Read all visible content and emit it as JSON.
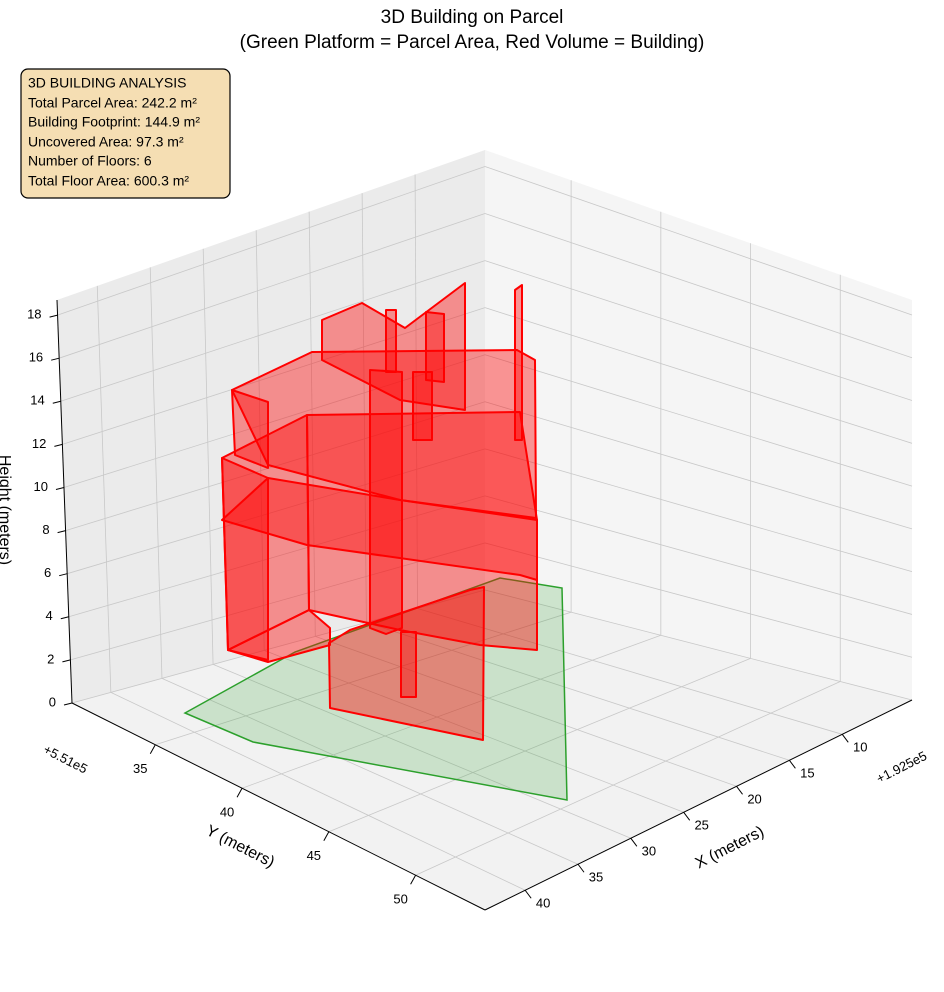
{
  "chart_data": {
    "type": "surface3d",
    "title": "3D Building on Parcel",
    "subtitle": "(Green Platform = Parcel Area, Red Volume = Building)",
    "annotation": [
      "3D BUILDING ANALYSIS",
      "Total Parcel Area: 242.2 m²",
      "Building Footprint: 144.9 m²",
      "Uncovered Area: 97.3 m²",
      "Number of Floors: 6",
      "Total Floor Area: 600.3 m²"
    ],
    "xlabel": "X (meters)",
    "ylabel": "Y (meters)",
    "zlabel": "Height (meters)",
    "x_offset_label": "+1.925e5",
    "y_offset_label": "+5.51e5",
    "xlim": [
      3.4,
      43.8
    ],
    "xticks": [
      10,
      15,
      20,
      25,
      30,
      35,
      40
    ],
    "ylim": [
      30.2,
      54
    ],
    "yticks": [
      35,
      40,
      45,
      50
    ],
    "zlim": [
      0,
      18.7
    ],
    "zticks": [
      0,
      2,
      4,
      6,
      8,
      10,
      12,
      14,
      16,
      18
    ],
    "grid": true,
    "parcel_color": "#2ca02c",
    "building_color": "#ff0000"
  }
}
